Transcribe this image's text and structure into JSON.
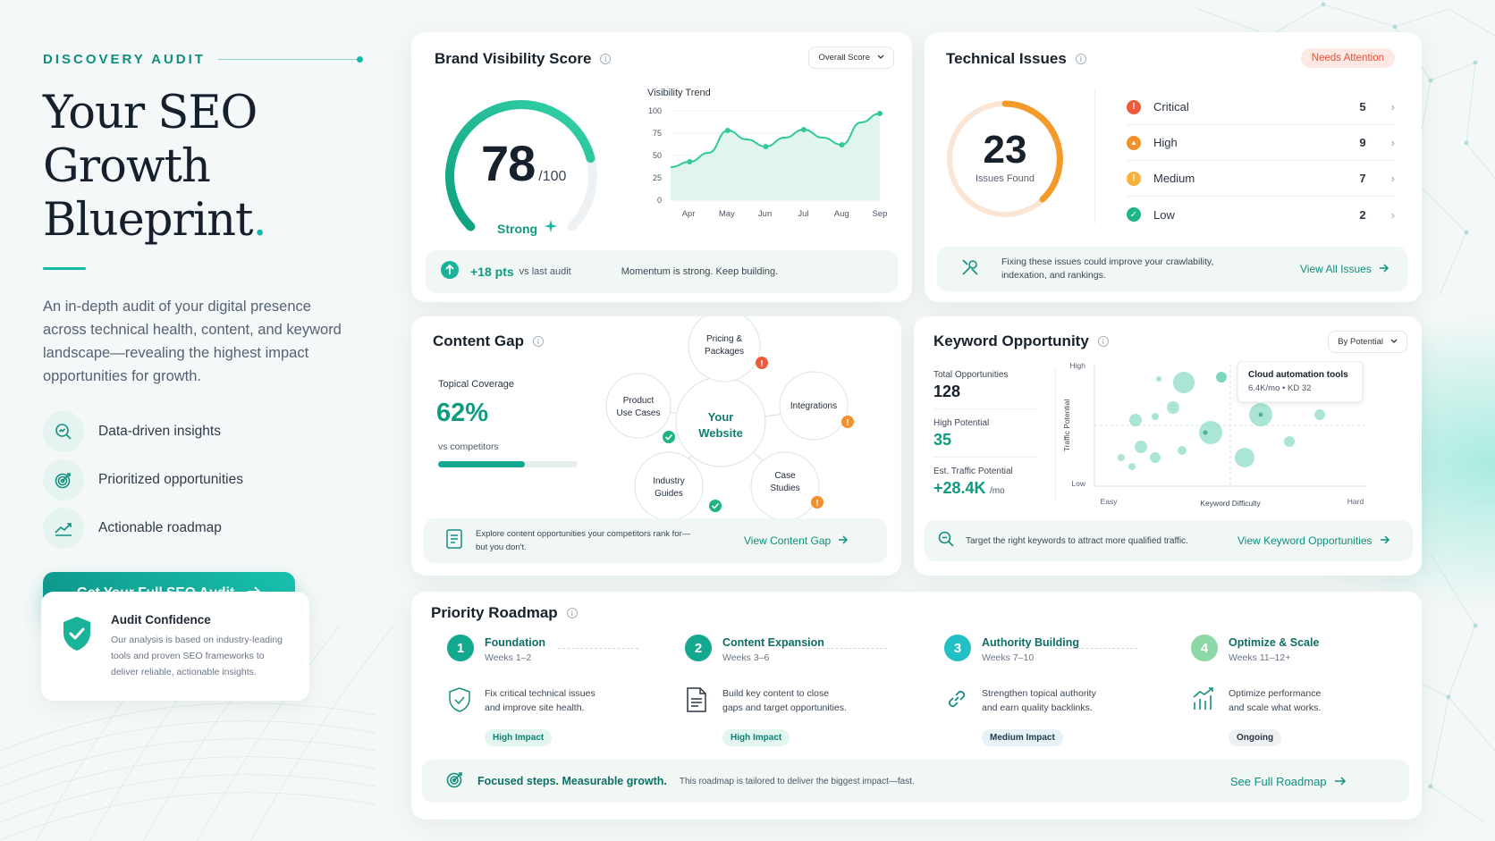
{
  "hero": {
    "eyebrow": "DISCOVERY AUDIT",
    "title_line1": "Your SEO",
    "title_line2": "Growth Blueprint",
    "title_dot": ".",
    "description": "An in-depth audit of your digital presence across technical health, content, and keyword landscape—revealing the highest impact opportunities for growth.",
    "features": [
      {
        "label": "Data-driven insights",
        "icon": "magnify-chart-icon"
      },
      {
        "label": "Prioritized opportunities",
        "icon": "target-icon"
      },
      {
        "label": "Actionable roadmap",
        "icon": "trend-up-icon"
      }
    ],
    "cta": "Get Your Full SEO Audit",
    "confidence": {
      "title": "Audit Confidence",
      "text_lines": [
        "Our analysis is based on industry-leading",
        "tools and proven SEO frameworks to",
        "deliver reliable, actionable insights."
      ]
    }
  },
  "brand": {
    "title": "Brand Visibility Score",
    "dropdown": "Overall Score",
    "score": "78",
    "score_max": "/100",
    "score_fraction": 0.78,
    "status": "Strong",
    "trend_title": "Visibility Trend",
    "delta": "+18 pts",
    "delta_note": "vs last audit",
    "momentum": "Momentum is strong. Keep building."
  },
  "chart_data": {
    "type": "area",
    "title": "Visibility Trend",
    "categories": [
      "Apr",
      "May",
      "Jun",
      "Jul",
      "Aug",
      "Sep"
    ],
    "x": [
      0,
      1,
      2,
      3,
      4,
      5,
      6,
      7,
      8,
      9,
      10,
      11
    ],
    "values": [
      37,
      43,
      53,
      78,
      68,
      60,
      70,
      79,
      70,
      62,
      87,
      97
    ],
    "yticks": [
      0,
      25,
      50,
      75,
      100
    ],
    "ylim": [
      0,
      100
    ],
    "grid": true,
    "colors": {
      "line": "#2ec89a",
      "fill": "#d8f3ea"
    }
  },
  "tech": {
    "title": "Technical Issues",
    "badge": "Needs Attention",
    "total": "23",
    "total_label": "Issues Found",
    "issues": [
      {
        "name": "Critical",
        "count": "5",
        "color": "#ef5a3c",
        "glyph": "!"
      },
      {
        "name": "High",
        "count": "9",
        "color": "#f4902a",
        "glyph": "▲"
      },
      {
        "name": "Medium",
        "count": "7",
        "color": "#f6b23a",
        "glyph": "!"
      },
      {
        "name": "Low",
        "count": "2",
        "color": "#1fb486",
        "glyph": "✓"
      }
    ],
    "footer_text_lines": [
      "Fixing these issues could improve your crawlability,",
      "indexation, and rankings."
    ],
    "footer_link": "View All Issues"
  },
  "content": {
    "title": "Content Gap",
    "coverage_label": "Topical Coverage",
    "coverage_value": "62%",
    "coverage_fraction": 0.62,
    "coverage_sub": "vs competitors",
    "center_line1": "Your",
    "center_line2": "Website",
    "nodes": [
      {
        "l1": "Pricing &",
        "l2": "Packages",
        "status": "alert-red"
      },
      {
        "l1": "Product",
        "l2": "Use Cases",
        "status": "ok"
      },
      {
        "l1": "Integrations",
        "l2": "",
        "status": "alert-orange"
      },
      {
        "l1": "Industry",
        "l2": "Guides",
        "status": "ok"
      },
      {
        "l1": "Case",
        "l2": "Studies",
        "status": "alert-orange"
      }
    ],
    "footer_text_lines": [
      "Explore content opportunities your competitors rank for—",
      "but you don't."
    ],
    "footer_link": "View Content Gap"
  },
  "keyword": {
    "title": "Keyword Opportunity",
    "dropdown": "By Potential",
    "stats": [
      {
        "label": "Total Opportunities",
        "value": "128",
        "unit": ""
      },
      {
        "label": "High Potential",
        "value": "35",
        "unit": ""
      },
      {
        "label": "Est. Traffic Potential",
        "value": "+28.4K",
        "unit": "/mo"
      }
    ],
    "y_axis_label": "Traffic Potential",
    "y_high": "High",
    "y_low": "Low",
    "x_axis_label": "Keyword Difficulty",
    "x_easy": "Easy",
    "x_hard": "Hard",
    "tooltip_title": "Cloud automation tools",
    "tooltip_sub": "6.4K/mo  •  KD 32",
    "footer_text": "Target the right keywords to attract more qualified traffic.",
    "footer_link": "View Keyword Opportunities"
  },
  "roadmap": {
    "title": "Priority Roadmap",
    "steps": [
      {
        "num": "1",
        "title": "Foundation",
        "weeks": "Weeks 1–2",
        "desc1": "Fix critical technical issues",
        "desc2": "and improve site health.",
        "tag": "High Impact",
        "color": "#14a88e",
        "icon": "shield-check-icon"
      },
      {
        "num": "2",
        "title": "Content Expansion",
        "weeks": "Weeks 3–6",
        "desc1": "Build key content to close",
        "desc2": "gaps and target opportunities.",
        "tag": "High Impact",
        "color": "#14a88e",
        "icon": "document-icon"
      },
      {
        "num": "3",
        "title": "Authority Building",
        "weeks": "Weeks 7–10",
        "desc1": "Strengthen topical authority",
        "desc2": "and earn quality backlinks.",
        "tag": "Medium Impact",
        "color": "#22c0c4",
        "icon": "link-icon"
      },
      {
        "num": "4",
        "title": "Optimize & Scale",
        "weeks": "Weeks 11–12+",
        "desc1": "Optimize performance",
        "desc2": "and scale what works.",
        "tag": "Ongoing",
        "color": "#8ed7a6",
        "icon": "bar-chart-icon"
      }
    ],
    "footer_bold": "Focused steps. Measurable growth.",
    "footer_text": "This roadmap is tailored to deliver the biggest impact—fast.",
    "footer_link": "See Full Roadmap"
  }
}
